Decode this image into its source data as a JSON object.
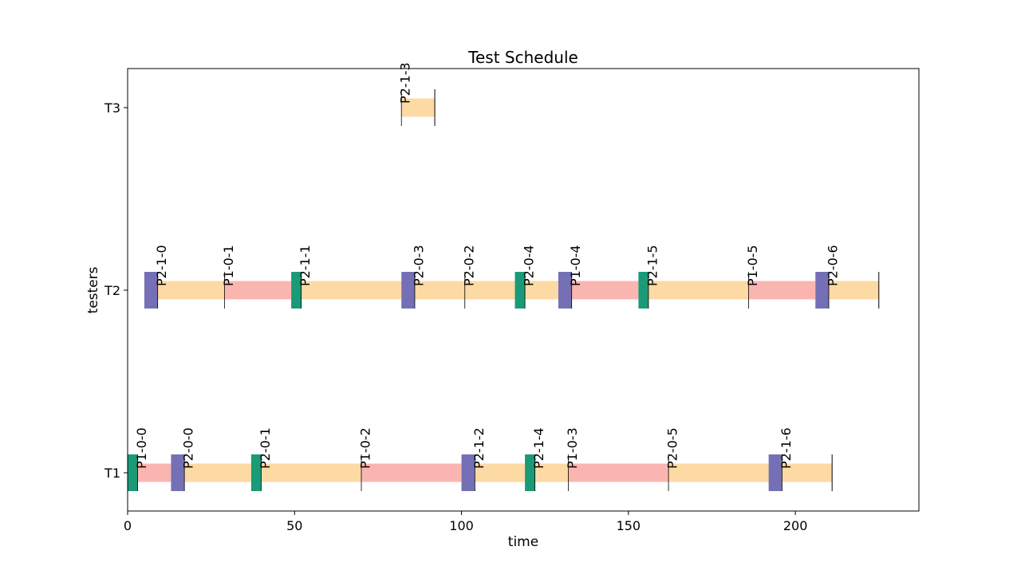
{
  "chart_data": {
    "type": "gantt",
    "title": "Test Schedule",
    "xlabel": "time",
    "ylabel": "testers",
    "xlim": [
      0,
      237
    ],
    "x_ticks": [
      0,
      50,
      100,
      150,
      200
    ],
    "testers": [
      "T1",
      "T2",
      "T3"
    ],
    "colors": {
      "test": "#fdd9a3",
      "prep": "#fbb5b0",
      "green_marker": "#1a9a76",
      "purple_marker": "#7570b5",
      "end_line": "#000000"
    },
    "tasks": [
      {
        "tester": "T1",
        "label": "P1-0-0",
        "start": 3,
        "end": 13,
        "kind": "prep"
      },
      {
        "tester": "T1",
        "label": "P2-0-0",
        "start": 17,
        "end": 37,
        "kind": "test"
      },
      {
        "tester": "T1",
        "label": "P2-0-1",
        "start": 40,
        "end": 70,
        "kind": "test"
      },
      {
        "tester": "T1",
        "label": "P1-0-2",
        "start": 70,
        "end": 100,
        "kind": "prep"
      },
      {
        "tester": "T1",
        "label": "P2-1-2",
        "start": 104,
        "end": 119,
        "kind": "test"
      },
      {
        "tester": "T1",
        "label": "P2-1-4",
        "start": 122,
        "end": 132,
        "kind": "test"
      },
      {
        "tester": "T1",
        "label": "P1-0-3",
        "start": 132,
        "end": 162,
        "kind": "prep"
      },
      {
        "tester": "T1",
        "label": "P2-0-5",
        "start": 162,
        "end": 192,
        "kind": "test"
      },
      {
        "tester": "T1",
        "label": "P2-1-6",
        "start": 196,
        "end": 211,
        "kind": "test"
      },
      {
        "tester": "T2",
        "label": "P2-1-0",
        "start": 9,
        "end": 29,
        "kind": "test"
      },
      {
        "tester": "T2",
        "label": "P1-0-1",
        "start": 29,
        "end": 49,
        "kind": "prep"
      },
      {
        "tester": "T2",
        "label": "P2-1-1",
        "start": 52,
        "end": 82,
        "kind": "test"
      },
      {
        "tester": "T2",
        "label": "P2-0-3",
        "start": 86,
        "end": 101,
        "kind": "test"
      },
      {
        "tester": "T2",
        "label": "P2-0-2",
        "start": 101,
        "end": 116,
        "kind": "test"
      },
      {
        "tester": "T2",
        "label": "P2-0-4",
        "start": 119,
        "end": 129,
        "kind": "test"
      },
      {
        "tester": "T2",
        "label": "P1-0-4",
        "start": 133,
        "end": 153,
        "kind": "prep"
      },
      {
        "tester": "T2",
        "label": "P2-1-5",
        "start": 156,
        "end": 186,
        "kind": "test"
      },
      {
        "tester": "T2",
        "label": "P1-0-5",
        "start": 186,
        "end": 206,
        "kind": "prep"
      },
      {
        "tester": "T2",
        "label": "P2-0-6",
        "start": 210,
        "end": 225,
        "kind": "test"
      },
      {
        "tester": "T3",
        "label": "P2-1-3",
        "start": 82,
        "end": 92,
        "kind": "test"
      }
    ],
    "markers": [
      {
        "tester": "T1",
        "start": 0,
        "end": 3,
        "color": "green"
      },
      {
        "tester": "T1",
        "start": 13,
        "end": 17,
        "color": "purple"
      },
      {
        "tester": "T1",
        "start": 37,
        "end": 40,
        "color": "green"
      },
      {
        "tester": "T1",
        "start": 100,
        "end": 104,
        "color": "purple"
      },
      {
        "tester": "T1",
        "start": 119,
        "end": 122,
        "color": "green"
      },
      {
        "tester": "T1",
        "start": 192,
        "end": 196,
        "color": "purple"
      },
      {
        "tester": "T2",
        "start": 5,
        "end": 9,
        "color": "purple"
      },
      {
        "tester": "T2",
        "start": 49,
        "end": 52,
        "color": "green"
      },
      {
        "tester": "T2",
        "start": 82,
        "end": 86,
        "color": "purple"
      },
      {
        "tester": "T2",
        "start": 116,
        "end": 119,
        "color": "green"
      },
      {
        "tester": "T2",
        "start": 129,
        "end": 133,
        "color": "purple"
      },
      {
        "tester": "T2",
        "start": 153,
        "end": 156,
        "color": "green"
      },
      {
        "tester": "T2",
        "start": 206,
        "end": 210,
        "color": "purple"
      }
    ],
    "end_lines": [
      {
        "tester": "T1",
        "x": 211
      },
      {
        "tester": "T2",
        "x": 225
      },
      {
        "tester": "T3",
        "x": 92
      }
    ],
    "grid": false,
    "legend": "none"
  }
}
